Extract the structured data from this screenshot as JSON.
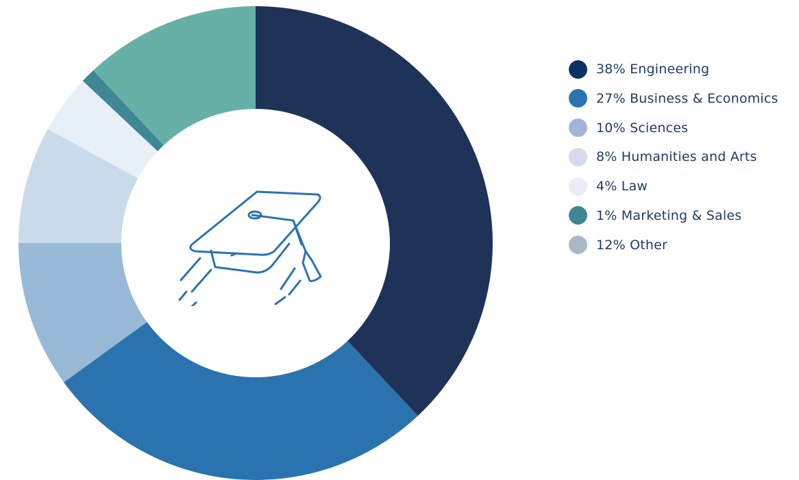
{
  "chart_data": {
    "type": "pie",
    "variant": "donut",
    "title": "",
    "center_icon": "graduation-cap-icon",
    "legend_position": "right",
    "slices": [
      {
        "label": "38% Engineering",
        "value": 38,
        "color": "#1f3358",
        "legend_color": "#0d3160"
      },
      {
        "label": "27% Business & Economics",
        "value": 27,
        "color": "#2b73ae",
        "legend_color": "#2b73ae"
      },
      {
        "label": "10% Sciences",
        "value": 10,
        "color": "#98b9d6",
        "legend_color": "#a4b3da"
      },
      {
        "label": "8% Humanities and Arts",
        "value": 8,
        "color": "#c9dbeb",
        "legend_color": "#d5daee"
      },
      {
        "label": "4% Law",
        "value": 4,
        "color": "#e8f0f7",
        "legend_color": "#eaedf6"
      },
      {
        "label": "1% Marketing & Sales",
        "value": 1,
        "color": "#3f8795",
        "legend_color": "#3f8795"
      },
      {
        "label": "12% Other",
        "value": 12,
        "color": "#66b0a8",
        "legend_color": "#a8b9c5"
      }
    ]
  }
}
